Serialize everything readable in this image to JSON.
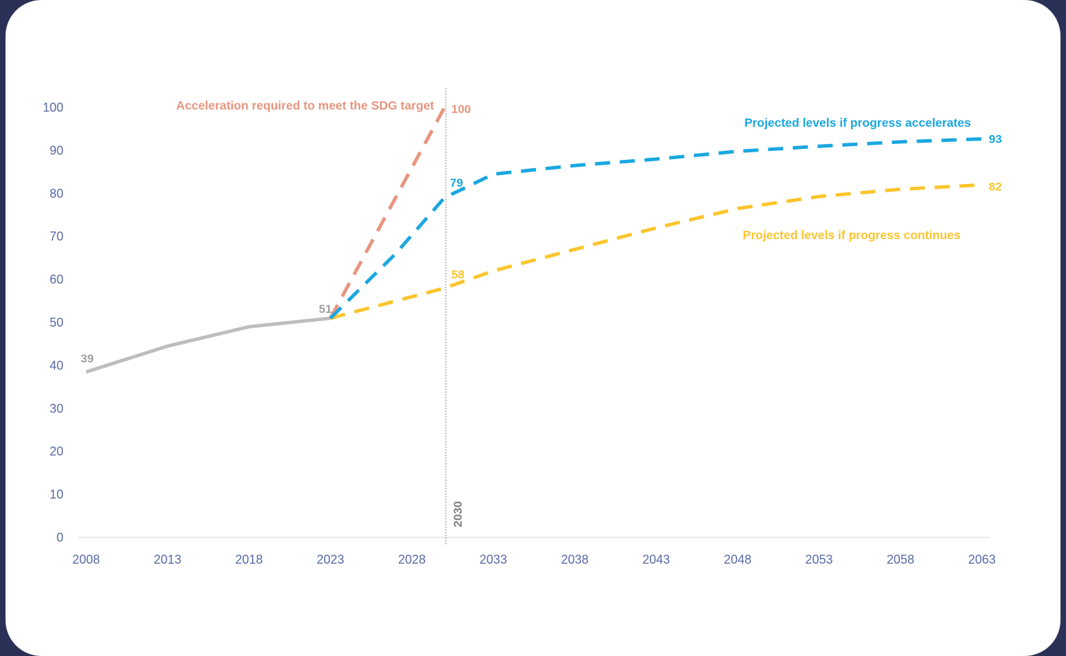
{
  "colors": {
    "historical": "#bdbdbd",
    "historical_label": "#a0a0a0",
    "sdg": "#e8957f",
    "accelerates": "#1aa7e0",
    "continues": "#fbc52d",
    "axis_text": "#5a6aa8",
    "marker_line": "#808080",
    "background": "#2b3156"
  },
  "chart_data": {
    "type": "line",
    "x_ticks": [
      "2008",
      "2013",
      "2018",
      "2023",
      "2028",
      "2033",
      "2038",
      "2043",
      "2048",
      "2053",
      "2058",
      "2063"
    ],
    "y_ticks": [
      0,
      10,
      20,
      30,
      40,
      50,
      60,
      70,
      80,
      90,
      100
    ],
    "xlim": [
      2008,
      2063
    ],
    "ylim": [
      0,
      100
    ],
    "grid": false,
    "vertical_marker": {
      "x": 2030,
      "label": "2030"
    },
    "series": [
      {
        "key": "historical",
        "style": "solid",
        "x": [
          2008,
          2013,
          2018,
          2023
        ],
        "y": [
          38.5,
          44.5,
          49,
          51
        ],
        "point_labels": [
          {
            "x": 2008,
            "y": 38.5,
            "text": "39"
          },
          {
            "x": 2023,
            "y": 51,
            "text": "51"
          }
        ]
      },
      {
        "key": "sdg",
        "style": "dashed",
        "x": [
          2023,
          2030
        ],
        "y": [
          51,
          100
        ],
        "point_labels": [
          {
            "x": 2030,
            "y": 100,
            "text": "100"
          }
        ]
      },
      {
        "key": "accelerates",
        "style": "dashed",
        "x": [
          2023,
          2025,
          2027,
          2030,
          2033,
          2038,
          2043,
          2048,
          2053,
          2058,
          2063
        ],
        "y": [
          51,
          58.5,
          66,
          79,
          84.5,
          86.5,
          88,
          89.8,
          91,
          92,
          92.7
        ],
        "point_labels": [
          {
            "x": 2030,
            "y": 79,
            "text": "79"
          },
          {
            "x": 2063,
            "y": 92.7,
            "text": "93"
          }
        ]
      },
      {
        "key": "continues",
        "style": "dashed",
        "x": [
          2023,
          2025,
          2030,
          2033,
          2038,
          2043,
          2048,
          2053,
          2058,
          2063
        ],
        "y": [
          51,
          53,
          58,
          62,
          67,
          72,
          76.5,
          79.3,
          81,
          82
        ],
        "point_labels": [
          {
            "x": 2030,
            "y": 58,
            "text": "58"
          },
          {
            "x": 2063,
            "y": 82,
            "text": "82"
          }
        ]
      }
    ],
    "annotations": {
      "sdg": "Acceleration required to meet the SDG target",
      "accelerates": "Projected levels if progress accelerates",
      "continues": "Projected levels if progress continues"
    }
  }
}
